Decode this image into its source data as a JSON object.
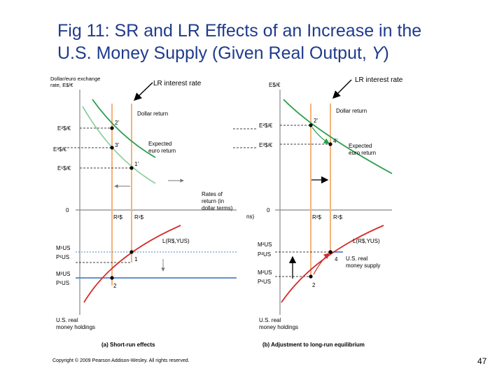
{
  "title": {
    "line1": "Fig 11: SR and LR Effects of an Increase in the",
    "line2_prefix": "U.S. Money Supply (Given Real Output, ",
    "line2_var": "Y",
    "line2_suffix": ")"
  },
  "callouts": {
    "left": "LR interest rate",
    "right": "LR interest rate"
  },
  "panel_a": {
    "y_axis_title_1": "Dollar/euro exchange",
    "y_axis_title_2": "rate, E$/€",
    "tick_e2": "E²$/€",
    "tick_e3": "E³$/€",
    "tick_e1": "E¹$/€",
    "zero": "0",
    "ms_1": "M¹US",
    "ps_1": "P¹US",
    "ms_2": "M²US",
    "ps_2": "P¹US",
    "label_dollar_return": "Dollar return",
    "label_expected_1": "Expected",
    "label_expected_2": "euro return",
    "label_rates_1": "Rates of",
    "label_rates_2": "return (in",
    "label_rates_3": "dollar terms)",
    "label_r2": "R²$",
    "label_r1": "R¹$",
    "label_l": "L(R$,YUS)",
    "pt_2p": "2'",
    "pt_3p": "3'",
    "pt_1p": "1'",
    "pt_1": "1",
    "pt_2": "2",
    "money_1": "U.S. real",
    "money_2": "money holdings",
    "caption": "(a) Short-run effects"
  },
  "panel_b": {
    "y_axis_title": "E$/€",
    "tick_e2": "E²$/€",
    "tick_e3": "E³$/€",
    "zero": "0",
    "ms_2": "M²US",
    "ps_2": "P²US",
    "ms_2b": "M²US",
    "ps_1": "P¹US",
    "label_dollar_return": "Dollar return",
    "label_expected_1": "Expected",
    "label_expected_2": "euro return",
    "label_r2": "R²$",
    "label_r1": "R¹$",
    "label_l": "L(R$,YUS)",
    "label_supply_1": "U.S. real",
    "label_supply_2": "money supply",
    "pt_2p": "2'",
    "pt_4p": "4'",
    "pt_4": "4",
    "pt_2": "2",
    "money_1": "U.S. real",
    "money_2": "money holdings",
    "caption": "(b) Adjustment to long-run equilibrium",
    "clip_fragment": "ns)"
  },
  "colors": {
    "green": "#2a9e4a",
    "light_green": "#8fd0a0",
    "orange": "#f5b37a",
    "red": "#d42a2a",
    "blue": "#4f82c6",
    "title_blue": "#1f3b8c"
  },
  "footer": "Copyright © 2009 Pearson Addison-Wesley. All rights reserved.",
  "page_number": "47"
}
